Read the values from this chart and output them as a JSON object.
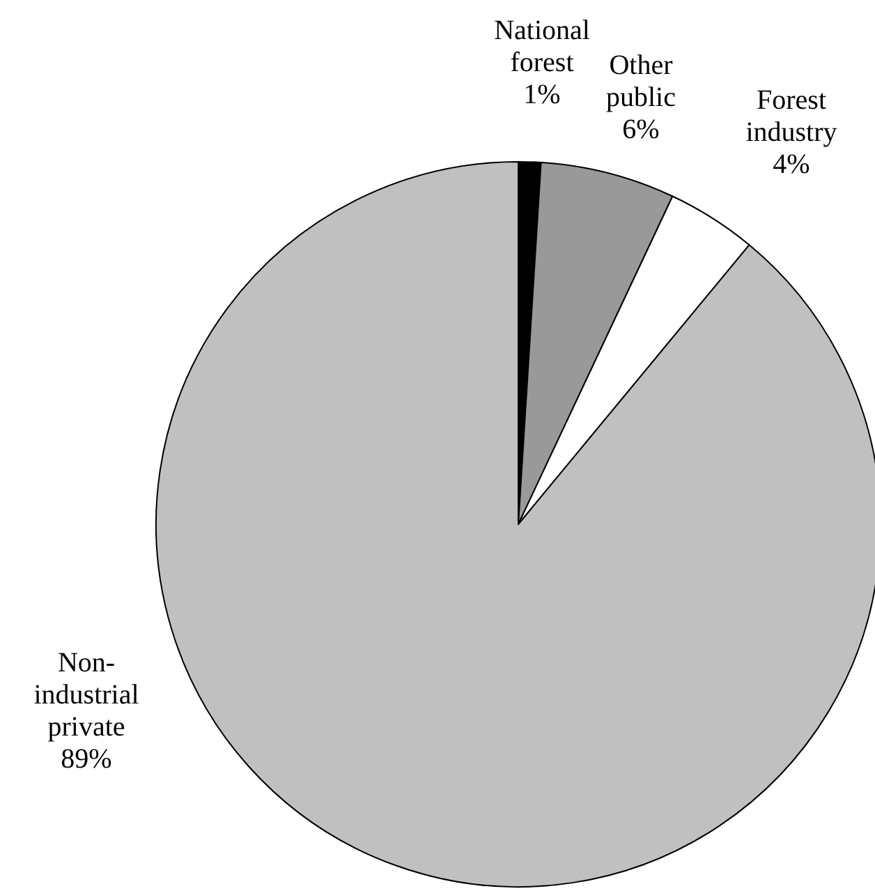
{
  "chart_data": {
    "type": "pie",
    "categories": [
      "National forest",
      "Other public",
      "Forest industry",
      "Non-industrial private"
    ],
    "values": [
      1,
      6,
      4,
      89
    ],
    "value_labels": [
      "1%",
      "6%",
      "4%",
      "89%"
    ],
    "colors": [
      "#000000",
      "#999999",
      "#ffffff",
      "#c0c0c0"
    ]
  }
}
